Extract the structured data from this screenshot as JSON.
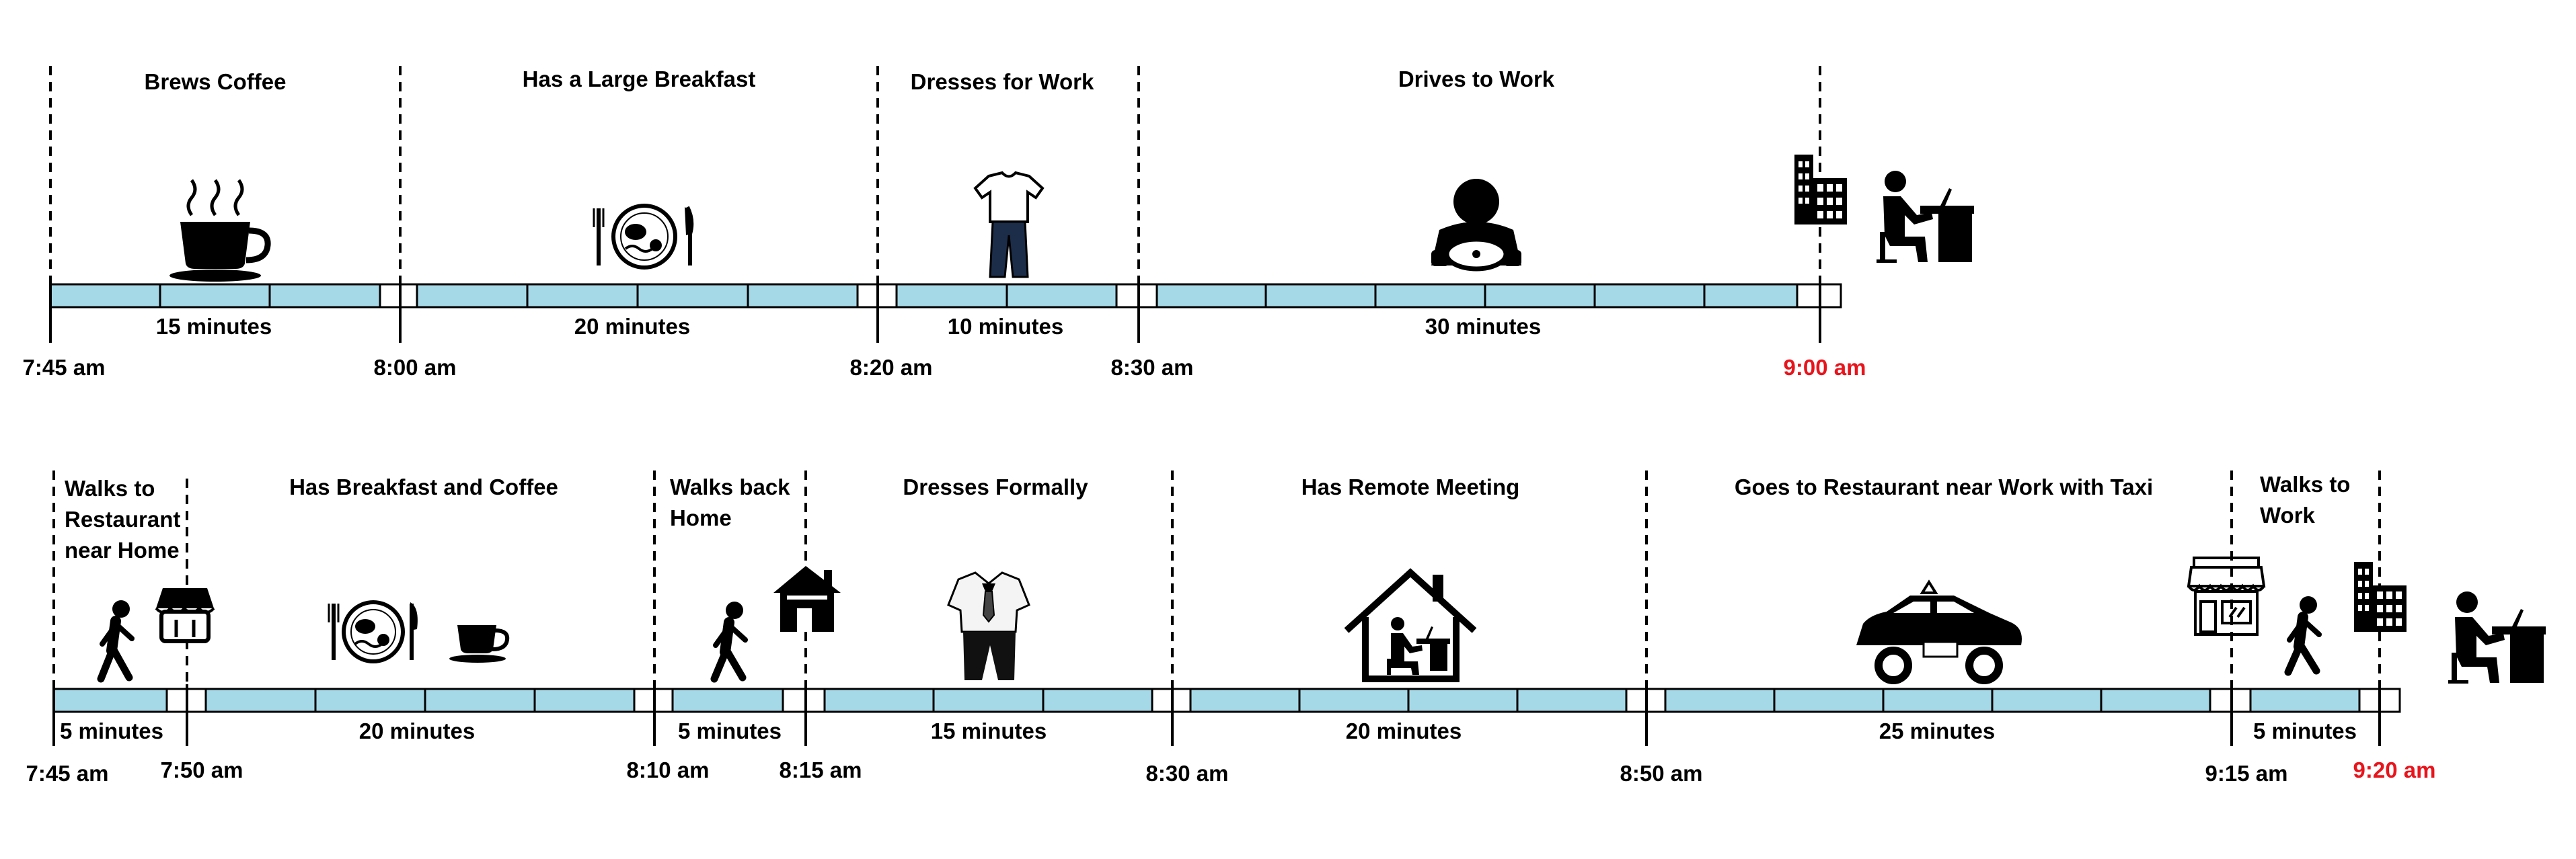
{
  "timeline_top": {
    "activities": [
      {
        "label": "Brews Coffee",
        "duration": "15 minutes",
        "icon": "coffee-cup-icon"
      },
      {
        "label": "Has a Large Breakfast",
        "duration": "20 minutes",
        "icon": "breakfast-plate-icon"
      },
      {
        "label": "Dresses for Work",
        "duration": "10 minutes",
        "icon": "casual-clothes-icon"
      },
      {
        "label": "Drives to Work",
        "duration": "30 minutes",
        "icon": "driver-icon"
      }
    ],
    "times": [
      "7:45 am",
      "8:00 am",
      "8:20 am",
      "8:30 am",
      "9:00 am"
    ],
    "end_icons": [
      "office-building-icon",
      "person-at-desk-icon"
    ]
  },
  "timeline_bottom": {
    "activities": [
      {
        "label_lines": [
          "Walks to",
          "Restaurant",
          "near Home"
        ],
        "duration": "5 minutes",
        "icon": "walking-person-icon"
      },
      {
        "label_lines": [
          "Has Breakfast and Coffee"
        ],
        "duration": "20 minutes",
        "icon": "breakfast-plate-icon"
      },
      {
        "label_lines": [
          "Walks back",
          "Home"
        ],
        "duration": "5 minutes",
        "icon": "walking-person-icon"
      },
      {
        "label_lines": [
          "Dresses Formally"
        ],
        "duration": "15 minutes",
        "icon": "formal-suit-icon"
      },
      {
        "label_lines": [
          "Has Remote Meeting"
        ],
        "duration": "20 minutes",
        "icon": "home-office-icon"
      },
      {
        "label_lines": [
          "Goes to Restaurant near Work with Taxi"
        ],
        "duration": "25 minutes",
        "icon": "taxi-icon"
      },
      {
        "label_lines": [
          "Walks to",
          "Work"
        ],
        "duration": "5 minutes",
        "icon": "walking-person-icon"
      }
    ],
    "times": [
      "7:45 am",
      "7:50 am",
      "8:10 am",
      "8:15 am",
      "8:30 am",
      "8:50 am",
      "9:15 am",
      "9:20 am"
    ],
    "transition_icons": [
      "restaurant-icon",
      "house-icon",
      "shop-icon",
      "office-building-icon",
      "person-at-desk-icon"
    ]
  },
  "colors": {
    "bar_fill": "#a6d9e8",
    "arrival_time": "#e8141c",
    "text": "#000000"
  }
}
